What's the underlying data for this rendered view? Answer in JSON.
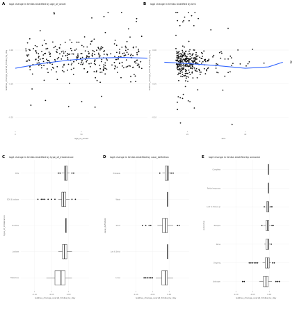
{
  "chart_data": [
    {
      "panel": "A",
      "type": "scatter",
      "title": "log2 change in timika stratified by age_of_onset",
      "xlabel": "age_of_onset",
      "ylabel": "relative_change_overall_timika_by_day",
      "xticks": [
        "0",
        "50"
      ],
      "yticks": [
        "0.00",
        "-0.05",
        "-0.10"
      ],
      "xlim": [
        0,
        100
      ],
      "ylim": [
        -0.12,
        0.06
      ],
      "trend_color": "#3366ff",
      "trend": {
        "x": [
          0,
          20,
          40,
          60,
          80,
          100
        ],
        "y": [
          -0.027,
          -0.02,
          -0.015,
          -0.012,
          -0.011,
          -0.012
        ]
      }
    },
    {
      "panel": "B",
      "type": "scatter",
      "title": "log2 change in timika stratified by bmi",
      "xlabel": "bmi",
      "ylabel": "relative_change_overall_timika_by_day",
      "xticks": [
        "20",
        "40"
      ],
      "yticks": [
        "0.00",
        "-0.05",
        "-0.10"
      ],
      "xlim": [
        10,
        55
      ],
      "ylim": [
        -0.12,
        0.06
      ],
      "trend_color": "#3366ff",
      "trend": {
        "x": [
          12,
          20,
          30,
          40,
          48,
          53
        ],
        "y": [
          -0.018,
          -0.02,
          -0.023,
          -0.027,
          -0.025,
          -0.018
        ]
      },
      "annotation": "2"
    },
    {
      "panel": "C",
      "type": "box",
      "title": "log2 change in timika stratified by type_of_intolerance",
      "xlabel": "relative_change_overall_timika_by_day",
      "ylabel": "type_of_intolerance",
      "xticks": [
        "-0.10",
        "-0.05",
        "0.00"
      ],
      "xlim": [
        -0.14,
        0.06
      ],
      "categories": [
        "EDS",
        "EDS & lactose",
        "Fructose",
        "Lactose",
        "Histamine"
      ],
      "boxes": [
        {
          "q1": -0.012,
          "med": -0.008,
          "q3": -0.004,
          "lo": -0.02,
          "hi": 0.003,
          "outliers": [
            -0.03,
            -0.025,
            0.01,
            0.015
          ]
        },
        {
          "q1": -0.02,
          "med": -0.015,
          "q3": -0.008,
          "lo": -0.03,
          "hi": 0.003,
          "outliers": [
            -0.09,
            -0.08,
            -0.075,
            -0.07,
            -0.06,
            -0.05,
            -0.04,
            0.01,
            0.02
          ]
        },
        {
          "q1": -0.008,
          "med": -0.008,
          "q3": -0.008,
          "lo": -0.008,
          "hi": -0.008,
          "outliers": []
        },
        {
          "q1": -0.018,
          "med": -0.012,
          "q3": -0.005,
          "lo": -0.03,
          "hi": 0.01,
          "outliers": []
        },
        {
          "q1": -0.04,
          "med": -0.022,
          "q3": -0.01,
          "lo": -0.065,
          "hi": 0.01,
          "outliers": []
        }
      ]
    },
    {
      "panel": "D",
      "type": "box",
      "title": "log2 change in timika stratified by case_definition",
      "xlabel": "relative_change_overall_timika_by_day",
      "ylabel": "case_definition",
      "xticks": [
        "-0.10",
        "-0.05",
        "0.00"
      ],
      "xlim": [
        -0.14,
        0.06
      ],
      "categories": [
        "Probable",
        "Weak",
        "Strict",
        "Lax & Strict",
        "Loose"
      ],
      "boxes": [
        {
          "q1": -0.012,
          "med": -0.006,
          "q3": -0.002,
          "lo": -0.02,
          "hi": 0.003,
          "outliers": [
            -0.028,
            0.006,
            0.012
          ]
        },
        {
          "q1": -0.005,
          "med": -0.005,
          "q3": -0.005,
          "lo": -0.005,
          "hi": -0.005,
          "outliers": []
        },
        {
          "q1": -0.02,
          "med": -0.012,
          "q3": -0.005,
          "lo": -0.035,
          "hi": 0.012,
          "outliers": [
            -0.08,
            -0.07,
            -0.06,
            -0.055,
            0.025,
            0.03
          ]
        },
        {
          "q1": -0.005,
          "med": -0.005,
          "q3": -0.005,
          "lo": -0.005,
          "hi": -0.005,
          "outliers": []
        },
        {
          "q1": -0.022,
          "med": -0.012,
          "q3": -0.005,
          "lo": -0.04,
          "hi": 0.012,
          "outliers": [
            -0.075,
            -0.07,
            -0.065,
            -0.06,
            -0.055,
            -0.05
          ]
        }
      ]
    },
    {
      "panel": "E",
      "type": "box",
      "title": "log2 change in timika stratified by outcome",
      "xlabel": "relative_change_overall_timika_by_day",
      "ylabel": "outcome",
      "xticks": [
        "-0.10",
        "-0.05",
        "0.00"
      ],
      "xlim": [
        -0.14,
        0.06
      ],
      "categories": [
        "Complete",
        "Partial response",
        "Lost to follow-up",
        "Relapse",
        "None",
        "Ongoing",
        "Unknown"
      ],
      "boxes": [
        {
          "q1": -0.003,
          "med": -0.003,
          "q3": -0.003,
          "lo": -0.003,
          "hi": -0.003,
          "outliers": []
        },
        {
          "q1": -0.003,
          "med": -0.003,
          "q3": -0.003,
          "lo": -0.003,
          "hi": -0.003,
          "outliers": []
        },
        {
          "q1": -0.008,
          "med": -0.004,
          "q3": -0.001,
          "lo": -0.012,
          "hi": 0.003,
          "outliers": [
            -0.015,
            0.005,
            0.008
          ]
        },
        {
          "q1": -0.01,
          "med": -0.005,
          "q3": -0.001,
          "lo": -0.018,
          "hi": 0.004,
          "outliers": [
            -0.022,
            0.008,
            0.012
          ]
        },
        {
          "q1": -0.01,
          "med": -0.004,
          "q3": -0.001,
          "lo": -0.015,
          "hi": 0.003,
          "outliers": [
            0.006
          ]
        },
        {
          "q1": -0.012,
          "med": -0.005,
          "q3": 0.0,
          "lo": -0.02,
          "hi": 0.005,
          "outliers": [
            -0.06,
            -0.055,
            -0.05,
            -0.045,
            -0.04,
            -0.035,
            0.01,
            0.015
          ]
        },
        {
          "q1": -0.018,
          "med": -0.01,
          "q3": -0.003,
          "lo": -0.03,
          "hi": 0.008,
          "outliers": [
            -0.08,
            -0.075,
            0.02,
            0.025,
            0.03
          ]
        }
      ]
    }
  ]
}
